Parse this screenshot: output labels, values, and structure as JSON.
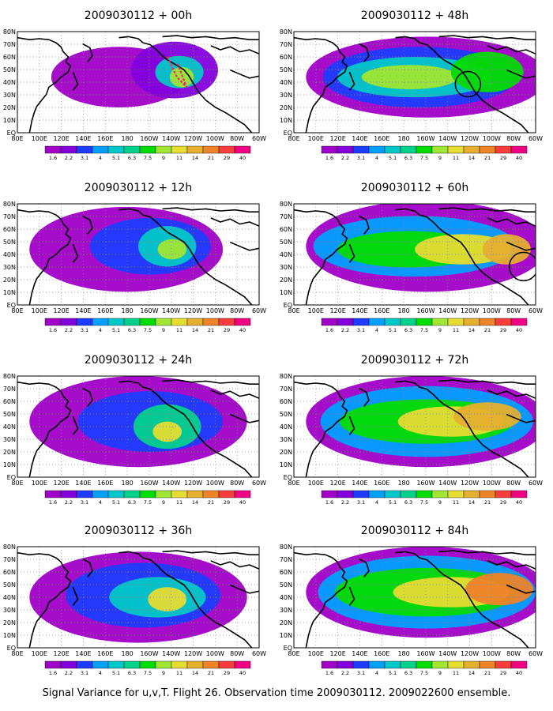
{
  "figure": {
    "caption": "Signal Variance for u,v,T. Flight 26. Observation time 2009030112. 2009022600 ensemble.",
    "colorbar": {
      "labels": [
        "1.6",
        "2.2",
        "3.1",
        "4",
        "5.1",
        "6.3",
        "7.5",
        "9",
        "11",
        "14",
        "21",
        "29",
        "40"
      ],
      "colors": [
        "#a000c8",
        "#8200dc",
        "#1e3cff",
        "#00a0ff",
        "#00c8c8",
        "#00d28c",
        "#00dc00",
        "#a0e632",
        "#e6dc32",
        "#e6af2d",
        "#f08228",
        "#fa3c3c",
        "#f00082"
      ]
    },
    "lon_labels": [
      "80E",
      "100E",
      "120E",
      "140E",
      "160E",
      "180",
      "160W",
      "140W",
      "120W",
      "100W",
      "80W",
      "60W"
    ],
    "lat_labels": [
      "80N",
      "70N",
      "60N",
      "50N",
      "40N",
      "30N",
      "20N",
      "10N",
      "EQ"
    ],
    "panels": [
      {
        "title": "2009030112 + 00h",
        "lead_hours": 0
      },
      {
        "title": "2009030112 + 48h",
        "lead_hours": 48
      },
      {
        "title": "2009030112 + 12h",
        "lead_hours": 12
      },
      {
        "title": "2009030112 + 60h",
        "lead_hours": 60
      },
      {
        "title": "2009030112 + 24h",
        "lead_hours": 24
      },
      {
        "title": "2009030112 + 72h",
        "lead_hours": 72
      },
      {
        "title": "2009030112 + 36h",
        "lead_hours": 36
      },
      {
        "title": "2009030112 + 84h",
        "lead_hours": 84
      }
    ]
  }
}
